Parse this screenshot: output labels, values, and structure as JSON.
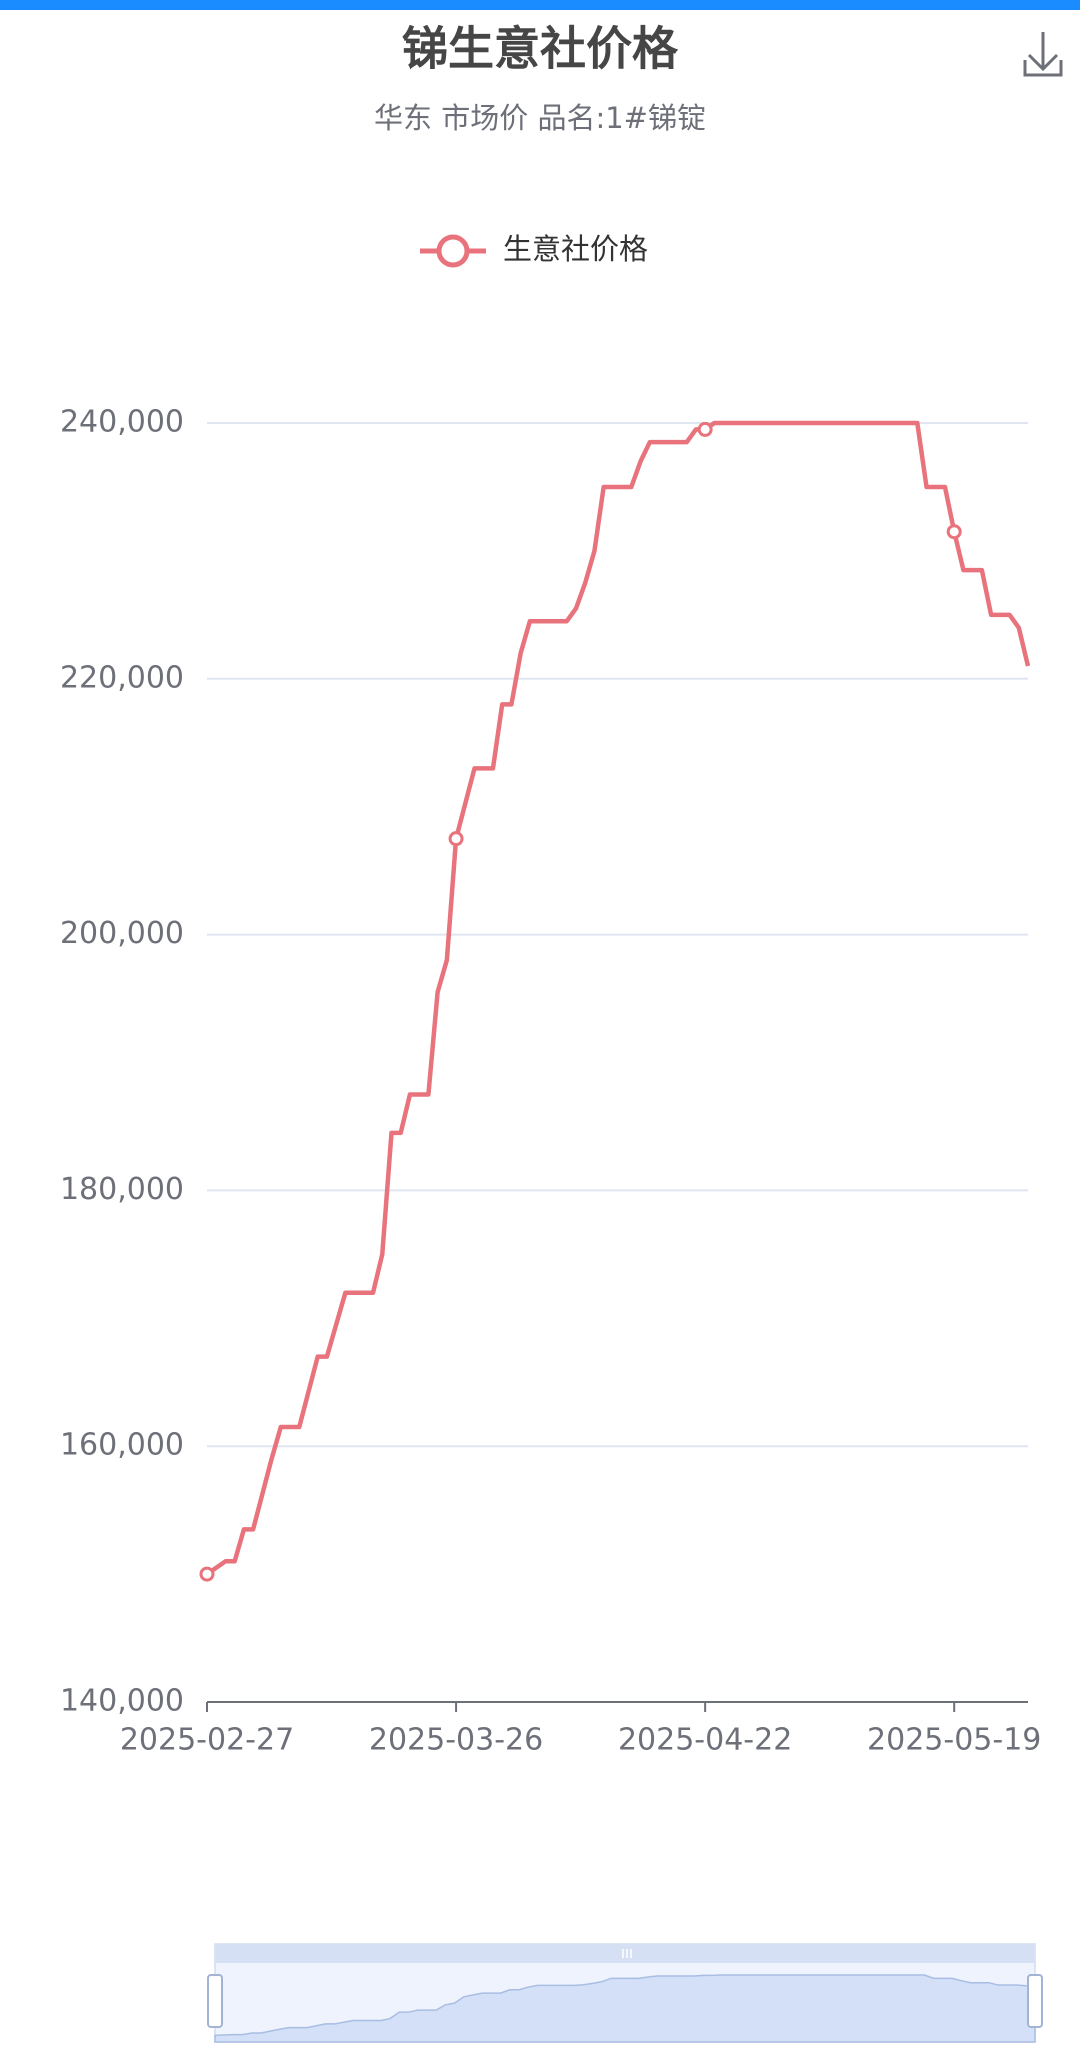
{
  "chart_data": {
    "type": "line",
    "title": "锑生意社价格",
    "subtitle": "华东 市场价 品名:1#锑锭",
    "x": [
      "2025-02-27",
      "2025-03-01",
      "2025-03-02",
      "2025-03-03",
      "2025-03-04",
      "2025-03-06",
      "2025-03-07",
      "2025-03-09",
      "2025-03-11",
      "2025-03-12",
      "2025-03-14",
      "2025-03-17",
      "2025-03-18",
      "2025-03-19",
      "2025-03-20",
      "2025-03-21",
      "2025-03-23",
      "2025-03-24",
      "2025-03-25",
      "2025-03-26",
      "2025-03-28",
      "2025-03-30",
      "2025-03-31",
      "2025-04-01",
      "2025-04-02",
      "2025-04-03",
      "2025-04-07",
      "2025-04-08",
      "2025-04-09",
      "2025-04-10",
      "2025-04-11",
      "2025-04-14",
      "2025-04-15",
      "2025-04-16",
      "2025-04-20",
      "2025-04-21",
      "2025-04-22",
      "2025-04-23",
      "2025-05-15",
      "2025-05-16",
      "2025-05-18",
      "2025-05-19",
      "2025-05-20",
      "2025-05-22",
      "2025-05-23",
      "2025-05-25",
      "2025-05-26",
      "2025-05-27"
    ],
    "series": [
      {
        "name": "生意社价格",
        "color": "#e8737c",
        "values": [
          150000,
          151000,
          151000,
          153500,
          153500,
          159000,
          161500,
          161500,
          167000,
          167000,
          172000,
          172000,
          175000,
          184500,
          184500,
          187500,
          187500,
          195500,
          198000,
          207500,
          213000,
          213000,
          218000,
          218000,
          222000,
          224500,
          224500,
          225500,
          227500,
          230000,
          235000,
          235000,
          237000,
          238500,
          238500,
          239500,
          239500,
          240000,
          240000,
          235000,
          235000,
          231500,
          228500,
          228500,
          225000,
          225000,
          224000,
          221000
        ]
      }
    ],
    "xlim": [
      "2025-02-27",
      "2025-05-27"
    ],
    "xticks": [
      "2025-02-27",
      "2025-03-26",
      "2025-04-22",
      "2025-05-19"
    ],
    "ylim": [
      140000,
      240000
    ],
    "yticks": [
      {
        "value": 140000,
        "label": "140,000"
      },
      {
        "value": 160000,
        "label": "160,000"
      },
      {
        "value": 180000,
        "label": "180,000"
      },
      {
        "value": 200000,
        "label": "200,000"
      },
      {
        "value": 220000,
        "label": "220,000"
      },
      {
        "value": 240000,
        "label": "240,000"
      }
    ],
    "grid": true,
    "legend": "top"
  }
}
